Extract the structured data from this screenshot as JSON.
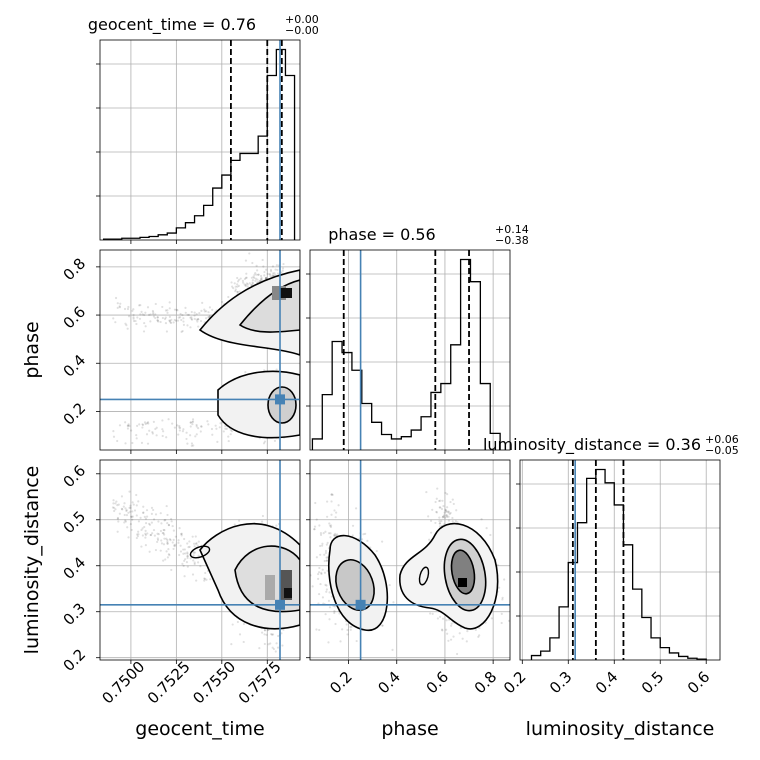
{
  "chart_data": {
    "type": "corner",
    "parameters": [
      "geocent_time",
      "phase",
      "luminosity_distance"
    ],
    "truths": {
      "geocent_time": 0.7582,
      "phase": 0.25,
      "luminosity_distance": 0.315
    },
    "titles": [
      {
        "param": "geocent_time",
        "text": "geocent_time = 0.76",
        "sup": "+0.00",
        "sub": "−0.00"
      },
      {
        "param": "phase",
        "text": "phase = 0.56",
        "sup": "+0.14",
        "sub": "−0.38"
      },
      {
        "param": "luminosity_distance",
        "text": "luminosity_distance = 0.36",
        "sup": "+0.06",
        "sub": "−0.05"
      }
    ],
    "axes": {
      "geocent_time": {
        "label": "geocent_time",
        "range": [
          0.7483,
          0.7593
        ],
        "ticks": [
          0.75,
          0.7525,
          0.755,
          0.7575
        ],
        "tick_labels": [
          "0.7500",
          "0.7525",
          "0.7550",
          "0.7575"
        ]
      },
      "phase": {
        "label": "phase",
        "range": [
          0.04,
          0.87
        ],
        "ticks": [
          0.2,
          0.4,
          0.6,
          0.8
        ],
        "tick_labels": [
          "0.2",
          "0.4",
          "0.6",
          "0.8"
        ]
      },
      "luminosity_distance": {
        "label": "luminosity_distance",
        "range": [
          0.195,
          0.63
        ],
        "ticks": [
          0.2,
          0.3,
          0.4,
          0.5,
          0.6
        ],
        "tick_labels": [
          "0.2",
          "0.3",
          "0.4",
          "0.5",
          "0.6"
        ]
      }
    },
    "histograms": {
      "geocent_time": {
        "quantiles": [
          0.7555,
          0.7575,
          0.7583
        ],
        "edges": [
          0.7485,
          0.749,
          0.7495,
          0.75,
          0.7505,
          0.751,
          0.7515,
          0.752,
          0.7525,
          0.753,
          0.7535,
          0.754,
          0.7545,
          0.755,
          0.7555,
          0.756,
          0.7565,
          0.757,
          0.7575,
          0.758,
          0.7585,
          0.759
        ],
        "counts": [
          1,
          1,
          2,
          2,
          3,
          4,
          6,
          8,
          14,
          20,
          28,
          40,
          60,
          75,
          92,
          100,
          100,
          120,
          190,
          220,
          190
        ]
      },
      "phase": {
        "quantiles": [
          0.18,
          0.56,
          0.7
        ],
        "edges": [
          0.05,
          0.091,
          0.132,
          0.173,
          0.214,
          0.255,
          0.296,
          0.337,
          0.378,
          0.419,
          0.46,
          0.501,
          0.542,
          0.583,
          0.624,
          0.665,
          0.706,
          0.747,
          0.788,
          0.829
        ],
        "counts": [
          10,
          50,
          98,
          88,
          72,
          42,
          25,
          14,
          10,
          12,
          18,
          30,
          52,
          60,
          95,
          172,
          152,
          60,
          15
        ]
      },
      "luminosity_distance": {
        "quantiles": [
          0.31,
          0.36,
          0.42
        ],
        "edges": [
          0.22,
          0.24,
          0.26,
          0.28,
          0.3,
          0.32,
          0.34,
          0.36,
          0.38,
          0.4,
          0.42,
          0.44,
          0.46,
          0.48,
          0.5,
          0.52,
          0.54,
          0.56,
          0.58,
          0.6
        ],
        "counts": [
          5,
          10,
          25,
          60,
          110,
          155,
          205,
          215,
          200,
          175,
          130,
          80,
          48,
          25,
          14,
          8,
          4,
          2,
          1
        ]
      }
    },
    "ylabels": {
      "phase": "phase",
      "luminosity_distance": "luminosity_distance"
    },
    "xlabels": [
      "geocent_time",
      "phase",
      "luminosity_distance"
    ],
    "grid": true,
    "truth_color": "#4682b4",
    "hist_color": "#000000",
    "density_color": "#000000"
  }
}
